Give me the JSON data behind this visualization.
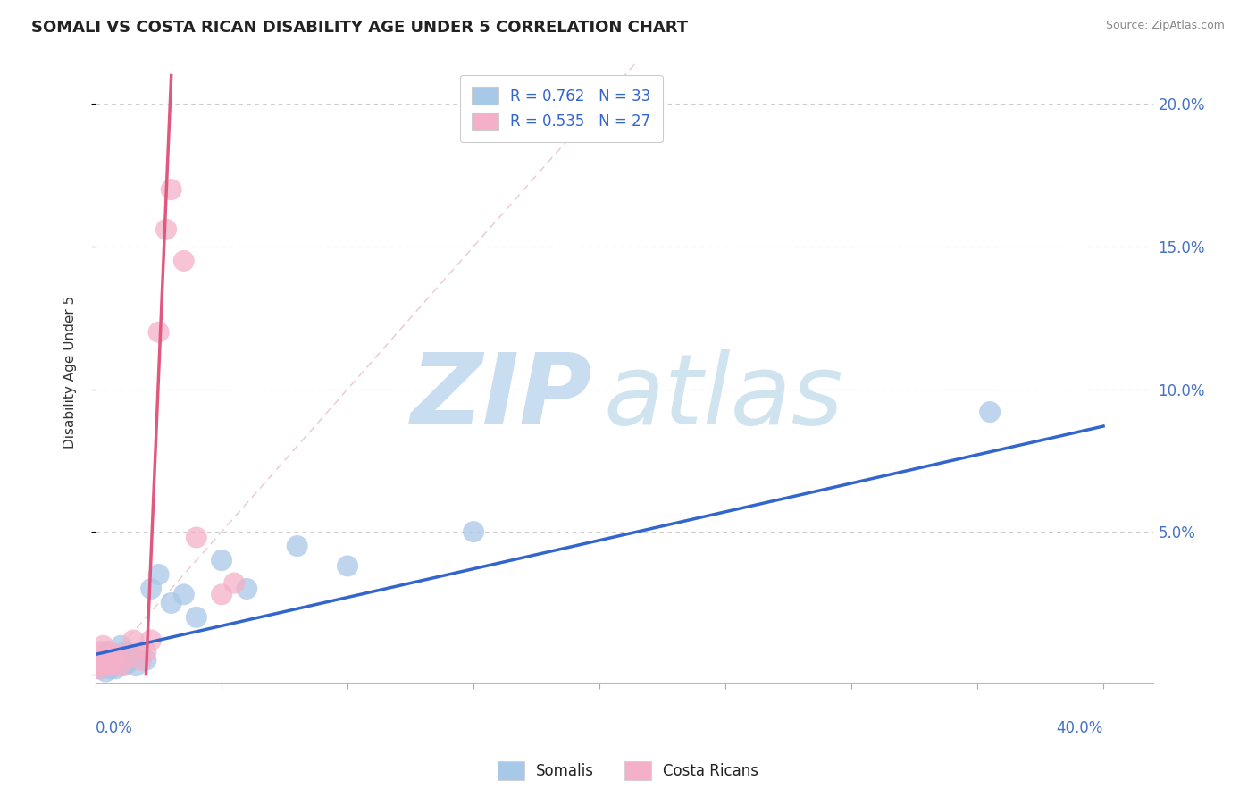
{
  "title": "SOMALI VS COSTA RICAN DISABILITY AGE UNDER 5 CORRELATION CHART",
  "source": "Source: ZipAtlas.com",
  "ylabel": "Disability Age Under 5",
  "ylabel_ticks": [
    0.0,
    0.05,
    0.1,
    0.15,
    0.2
  ],
  "ylabel_tick_labels": [
    "",
    "5.0%",
    "10.0%",
    "15.0%",
    "20.0%"
  ],
  "xlim": [
    0.0,
    0.42
  ],
  "ylim": [
    -0.003,
    0.215
  ],
  "watermark_zip": "ZIP",
  "watermark_atlas": "atlas",
  "blue_color": "#a8c8e8",
  "pink_color": "#f4b0c8",
  "blue_line_color": "#3366cc",
  "pink_line_color": "#e05880",
  "grid_color": "#cccccc",
  "background_color": "#ffffff",
  "title_fontsize": 13,
  "watermark_color_zip": "#c8ddf0",
  "watermark_color_atlas": "#d0e4f0",
  "somali_x": [
    0.001,
    0.002,
    0.002,
    0.003,
    0.004,
    0.004,
    0.005,
    0.005,
    0.006,
    0.006,
    0.007,
    0.008,
    0.008,
    0.009,
    0.01,
    0.011,
    0.012,
    0.013,
    0.015,
    0.016,
    0.018,
    0.02,
    0.022,
    0.025,
    0.03,
    0.035,
    0.04,
    0.05,
    0.06,
    0.08,
    0.1,
    0.15,
    0.355
  ],
  "somali_y": [
    0.004,
    0.002,
    0.005,
    0.003,
    0.006,
    0.001,
    0.004,
    0.008,
    0.002,
    0.006,
    0.003,
    0.007,
    0.002,
    0.005,
    0.01,
    0.003,
    0.008,
    0.004,
    0.006,
    0.003,
    0.007,
    0.005,
    0.03,
    0.035,
    0.025,
    0.028,
    0.02,
    0.04,
    0.03,
    0.045,
    0.038,
    0.05,
    0.092
  ],
  "costarican_x": [
    0.001,
    0.001,
    0.002,
    0.002,
    0.003,
    0.003,
    0.004,
    0.004,
    0.005,
    0.005,
    0.006,
    0.007,
    0.008,
    0.009,
    0.01,
    0.012,
    0.015,
    0.018,
    0.02,
    0.022,
    0.025,
    0.028,
    0.03,
    0.035,
    0.04,
    0.05,
    0.055
  ],
  "costarican_y": [
    0.002,
    0.005,
    0.003,
    0.008,
    0.004,
    0.01,
    0.003,
    0.006,
    0.004,
    0.008,
    0.003,
    0.005,
    0.004,
    0.007,
    0.003,
    0.006,
    0.012,
    0.005,
    0.008,
    0.012,
    0.12,
    0.156,
    0.17,
    0.145,
    0.048,
    0.028,
    0.032
  ],
  "blue_line_x0": 0.0,
  "blue_line_y0": 0.007,
  "blue_line_x1": 0.4,
  "blue_line_y1": 0.087,
  "pink_line_x0": 0.02,
  "pink_line_y0": 0.0,
  "pink_line_x1": 0.03,
  "pink_line_y1": 0.21,
  "ref_line_x0": 0.0,
  "ref_line_y0": 0.0,
  "ref_line_x1": 0.215,
  "ref_line_y1": 0.215
}
